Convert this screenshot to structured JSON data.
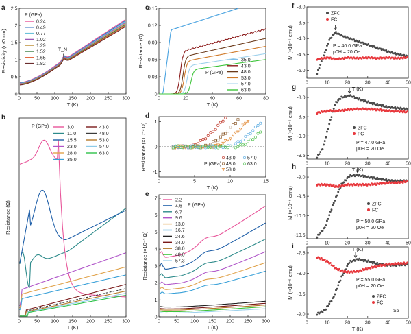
{
  "panels": {
    "a": {
      "label": "a",
      "chart_data": {
        "type": "line",
        "xlabel": "T (K)",
        "ylabel": "Resistivity (mΩ cm)",
        "xlim": [
          0,
          300
        ],
        "ylim": [
          0,
          2.5
        ],
        "xticks": [
          0,
          50,
          100,
          150,
          200,
          250,
          300
        ],
        "yticks": [
          0,
          0.5,
          1.0,
          1.5,
          2.0,
          2.5
        ],
        "legend_title": "P (GPa)",
        "annotation": "T_N",
        "series": [
          {
            "name": "0.24",
            "color": "#e8559a",
            "start": 0.33,
            "at100": 0.82,
            "end": 2.18
          },
          {
            "name": "0.49",
            "color": "#2f6fc1",
            "start": 0.32,
            "at100": 0.8,
            "end": 2.15
          },
          {
            "name": "0.77",
            "color": "#6ac1d9",
            "start": 0.31,
            "at100": 0.79,
            "end": 2.12
          },
          {
            "name": "1.02",
            "color": "#9b59b6",
            "start": 0.3,
            "at100": 0.78,
            "end": 2.09
          },
          {
            "name": "1.29",
            "color": "#c8a25a",
            "start": 0.29,
            "at100": 0.77,
            "end": 2.06
          },
          {
            "name": "1.52",
            "color": "#3a7d44",
            "start": 0.28,
            "at100": 0.76,
            "end": 2.03
          },
          {
            "name": "1.65",
            "color": "#e0572a",
            "start": 0.27,
            "at100": 0.75,
            "end": 2.0
          },
          {
            "name": "1.82",
            "color": "#6b2d2d",
            "start": 0.26,
            "at100": 0.74,
            "end": 1.97
          }
        ]
      }
    },
    "b": {
      "label": "b",
      "chart_data": {
        "type": "line",
        "xlabel": "T (K)",
        "ylabel": "Resistance (Ω)",
        "xlim": [
          0,
          300
        ],
        "ylim": [
          0,
          13.5
        ],
        "xticks": [
          0,
          50,
          100,
          150,
          200,
          250,
          300
        ],
        "legend_title": "P (GPa)",
        "series": [
          {
            "name": "3.0",
            "color": "#e8559a"
          },
          {
            "name": "11.0",
            "color": "#2c8a8a"
          },
          {
            "name": "15.5",
            "color": "#1f5fa8"
          },
          {
            "name": "23.0",
            "color": "#b055c9"
          },
          {
            "name": "28.0",
            "color": "#e0a24a"
          },
          {
            "name": "35.0",
            "color": "#38a0d8"
          },
          {
            "name": "43.0",
            "color": "#7a1a1a"
          },
          {
            "name": "48.0",
            "color": "#3b3b3b"
          },
          {
            "name": "53.0",
            "color": "#b57a2a"
          },
          {
            "name": "57.0",
            "color": "#8ecbe8"
          },
          {
            "name": "63.0",
            "color": "#2ec24a"
          }
        ]
      }
    },
    "c": {
      "label": "c",
      "chart_data": {
        "type": "line",
        "xlabel": "T (K)",
        "ylabel": "Resistance (Ω)",
        "xlim": [
          0,
          80
        ],
        "ylim": [
          0,
          0.15
        ],
        "xticks": [
          0,
          20,
          40,
          60,
          80
        ],
        "yticks": [
          0,
          0.03,
          0.06,
          0.09,
          0.12,
          0.15
        ],
        "legend_title": "P (GPa)",
        "series": [
          {
            "name": "35.0",
            "color": "#4aa3e0",
            "tc": 5,
            "plateau": 0.118,
            "slope": 0.0007
          },
          {
            "name": "43.0",
            "color": "#8b1a1a",
            "tc": 16,
            "plateau": 0.075,
            "slope": 0.00062
          },
          {
            "name": "48.0",
            "color": "#6b3a1a",
            "tc": 18,
            "plateau": 0.066,
            "slope": 0.00052
          },
          {
            "name": "53.0",
            "color": "#d07a2a",
            "tc": 19,
            "plateau": 0.058,
            "slope": 0.00043
          },
          {
            "name": "57.0",
            "color": "#9fd1ec",
            "tc": 21,
            "plateau": 0.05,
            "slope": 0.00036
          },
          {
            "name": "63.0",
            "color": "#3ec43a",
            "tc": 24,
            "plateau": 0.043,
            "slope": 0.00032
          }
        ]
      }
    },
    "d": {
      "label": "d",
      "chart_data": {
        "type": "scatter",
        "xlabel": "T (K)",
        "ylabel": "Resistance (×10⁻³ Ω)",
        "xlim": [
          0,
          15
        ],
        "ylim": [
          -1.2,
          1.2
        ],
        "xticks": [
          0,
          5,
          10,
          15
        ],
        "yticks": [
          -1,
          0,
          1
        ],
        "legend_title": "P (GPa)",
        "series": [
          {
            "name": "43.0",
            "color": "#c0392b",
            "marker": "circle",
            "onset": 4.0
          },
          {
            "name": "48.0",
            "color": "#8b5a2b",
            "marker": "square",
            "onset": 6.0
          },
          {
            "name": "53.0",
            "color": "#e0832a",
            "marker": "triangle",
            "onset": 7.5
          },
          {
            "name": "57.0",
            "color": "#5dade2",
            "marker": "circle",
            "onset": 9.5
          },
          {
            "name": "63.0",
            "color": "#5cc45a",
            "marker": "circle",
            "onset": 10.8
          }
        ]
      }
    },
    "e": {
      "label": "e",
      "chart_data": {
        "type": "line",
        "xlabel": "T (K)",
        "ylabel": "Resistance (×10⁻³ Ω)",
        "xlim": [
          0,
          300
        ],
        "ylim": [
          0,
          7.2
        ],
        "xticks": [
          0,
          50,
          100,
          150,
          200,
          250,
          300
        ],
        "yticks": [
          0,
          1,
          2,
          3,
          4,
          5,
          6,
          7
        ],
        "legend_title": "P (GPa)",
        "series": [
          {
            "name": "2.2",
            "color": "#e8559a",
            "low": 4.0,
            "dip": 3.5,
            "end": 6.55
          },
          {
            "name": "4.6",
            "color": "#1f5fa8",
            "low": 3.3,
            "dip": 2.8,
            "end": 5.55
          },
          {
            "name": "6.7",
            "color": "#2c8a8a",
            "low": 2.7,
            "dip": 2.3,
            "end": 4.6
          },
          {
            "name": "9.6",
            "color": "#b055c9",
            "low": 2.2,
            "dip": 1.9,
            "end": 3.85
          },
          {
            "name": "13.0",
            "color": "#e0a24a",
            "low": 1.9,
            "dip": 1.6,
            "end": 3.2
          },
          {
            "name": "16.7",
            "color": "#38a0d8",
            "low": 1.6,
            "dip": 1.35,
            "end": 2.7
          },
          {
            "name": "24.6",
            "color": "#222222",
            "low": 0.62,
            "dip": 0.58,
            "end": 0.92
          },
          {
            "name": "34.0",
            "color": "#7a1a1a",
            "low": 0.5,
            "dip": 0.47,
            "end": 0.8
          },
          {
            "name": "38.0",
            "color": "#b57a2a",
            "low": 0.42,
            "dip": 0.4,
            "end": 0.7
          },
          {
            "name": "48.0",
            "color": "#3ec43a",
            "low": 0.33,
            "dip": 0.3,
            "end": 0.6
          },
          {
            "name": "57.3",
            "color": "#9fd1ec",
            "low": 0.25,
            "dip": 0.22,
            "end": 0.48
          }
        ]
      }
    },
    "f": {
      "label": "f",
      "chart_data": {
        "type": "scatter",
        "xlabel": "T (K)",
        "ylabel": "M (×10⁻⁶ emu)",
        "xlim": [
          0,
          50
        ],
        "ylim": [
          -5.25,
          -3.0
        ],
        "xticks": [
          0,
          10,
          20,
          30,
          40,
          50
        ],
        "yticks": [
          -5.0,
          -4.5,
          -4.0,
          -3.5,
          -3.0
        ],
        "ytick_labels": [
          "-5.0",
          "-4.5",
          "-4.0",
          "-3.5",
          "-3.0"
        ],
        "annotation_1": "P = 40.0 GPa",
        "annotation_2": "μ0H = 20 Oe",
        "legend": [
          "ZFC",
          "FC"
        ],
        "zfc": {
          "color": "#4a4a4a",
          "points": [
            [
              5,
              -5.1
            ],
            [
              8,
              -4.6
            ],
            [
              11,
              -4.05
            ],
            [
              14,
              -3.8
            ],
            [
              17,
              -3.9
            ],
            [
              21,
              -4.0
            ],
            [
              28,
              -4.15
            ],
            [
              35,
              -4.3
            ],
            [
              42,
              -4.45
            ],
            [
              49,
              -4.55
            ]
          ]
        },
        "fc": {
          "color": "#e8383d",
          "points": [
            [
              5,
              -4.65
            ],
            [
              10,
              -4.6
            ],
            [
              15,
              -4.65
            ],
            [
              20,
              -4.6
            ],
            [
              25,
              -4.62
            ],
            [
              30,
              -4.6
            ],
            [
              35,
              -4.62
            ],
            [
              40,
              -4.6
            ],
            [
              45,
              -4.62
            ],
            [
              49,
              -4.6
            ]
          ]
        }
      }
    },
    "g": {
      "label": "g",
      "chart_data": {
        "type": "scatter",
        "xlabel": "T (K)",
        "ylabel": "M (×10⁻⁶ emu)",
        "xlim": [
          0,
          50
        ],
        "ylim": [
          -9.6,
          -7.75
        ],
        "xticks": [
          0,
          10,
          20,
          30,
          40,
          50
        ],
        "yticks": [
          -9.5,
          -9.0,
          -8.5,
          -8.0
        ],
        "ytick_labels": [
          "-9.5",
          "-9.0",
          "-8.5",
          "-8.0"
        ],
        "annotation_1": "P = 47.0 GPa",
        "annotation_2": "μ0H = 20 Oe",
        "legend": [
          "ZFC",
          "FC"
        ],
        "zfc": {
          "color": "#4a4a4a",
          "points": [
            [
              5,
              -9.55
            ],
            [
              8,
              -9.3
            ],
            [
              11,
              -8.7
            ],
            [
              14,
              -8.15
            ],
            [
              17,
              -8.0
            ],
            [
              21,
              -7.95
            ],
            [
              26,
              -8.05
            ],
            [
              32,
              -8.15
            ],
            [
              40,
              -8.25
            ],
            [
              49,
              -8.3
            ]
          ]
        },
        "fc": {
          "color": "#e8383d",
          "points": [
            [
              5,
              -8.4
            ],
            [
              10,
              -8.35
            ],
            [
              15,
              -8.35
            ],
            [
              20,
              -8.32
            ],
            [
              25,
              -8.3
            ],
            [
              30,
              -8.3
            ],
            [
              35,
              -8.32
            ],
            [
              40,
              -8.35
            ],
            [
              45,
              -8.36
            ],
            [
              49,
              -8.38
            ]
          ]
        }
      }
    },
    "h": {
      "label": "h",
      "chart_data": {
        "type": "scatter",
        "xlabel": "T (K)",
        "ylabel": "M (×10⁻⁶ emu)",
        "xlim": [
          0,
          50
        ],
        "ylim": [
          -10.6,
          -8.75
        ],
        "xticks": [
          0,
          10,
          20,
          30,
          40,
          50
        ],
        "yticks": [
          -10.5,
          -10.0,
          -9.5,
          -9.0
        ],
        "ytick_labels": [
          "-10.5",
          "-10.0",
          "-9.5",
          "-9.0"
        ],
        "annotation_1": "P = 50.0 GPa",
        "annotation_2": "μ0H = 20 Oe",
        "legend": [
          "ZFC",
          "FC"
        ],
        "zfc": {
          "color": "#4a4a4a",
          "points": [
            [
              5,
              -10.55
            ],
            [
              9,
              -10.3
            ],
            [
              13,
              -9.7
            ],
            [
              17,
              -9.2
            ],
            [
              21,
              -8.97
            ],
            [
              25,
              -8.95
            ],
            [
              30,
              -9.0
            ],
            [
              36,
              -9.05
            ],
            [
              42,
              -9.1
            ],
            [
              49,
              -9.1
            ]
          ]
        },
        "fc": {
          "color": "#e8383d",
          "points": [
            [
              5,
              -9.2
            ],
            [
              10,
              -9.2
            ],
            [
              15,
              -9.25
            ],
            [
              20,
              -9.2
            ],
            [
              25,
              -9.2
            ],
            [
              30,
              -9.2
            ],
            [
              35,
              -9.18
            ],
            [
              40,
              -9.15
            ],
            [
              45,
              -9.15
            ],
            [
              49,
              -9.12
            ]
          ]
        }
      }
    },
    "i": {
      "label": "i",
      "chart_data": {
        "type": "scatter",
        "xlabel": "T (K)",
        "ylabel": "M (×10⁻⁶ emu)",
        "xlim": [
          0,
          50
        ],
        "ylim": [
          -9.1,
          -7.35
        ],
        "xticks": [
          0,
          10,
          20,
          30,
          40,
          50
        ],
        "yticks": [
          -9.0,
          -8.5,
          -8.0,
          -7.5
        ],
        "ytick_labels": [
          "-9.0",
          "-8.5",
          "-8.0",
          "-7.5"
        ],
        "annotation_1": "P = 55.0 GPa",
        "annotation_2": "μ0H = 20 Oe",
        "annotation_3": "S6",
        "legend": [
          "ZFC",
          "FC"
        ],
        "zfc": {
          "color": "#4a4a4a",
          "points": [
            [
              5,
              -9.0
            ],
            [
              9,
              -8.9
            ],
            [
              13,
              -8.6
            ],
            [
              17,
              -8.1
            ],
            [
              21,
              -7.72
            ],
            [
              25,
              -7.65
            ],
            [
              30,
              -7.7
            ],
            [
              36,
              -7.78
            ],
            [
              42,
              -7.8
            ],
            [
              49,
              -7.78
            ]
          ]
        },
        "fc": {
          "color": "#e8383d",
          "points": [
            [
              5,
              -7.6
            ],
            [
              10,
              -7.7
            ],
            [
              15,
              -7.9
            ],
            [
              20,
              -7.97
            ],
            [
              25,
              -7.95
            ],
            [
              30,
              -7.88
            ],
            [
              35,
              -7.82
            ],
            [
              40,
              -7.78
            ],
            [
              45,
              -7.76
            ],
            [
              49,
              -7.75
            ]
          ]
        }
      }
    }
  }
}
